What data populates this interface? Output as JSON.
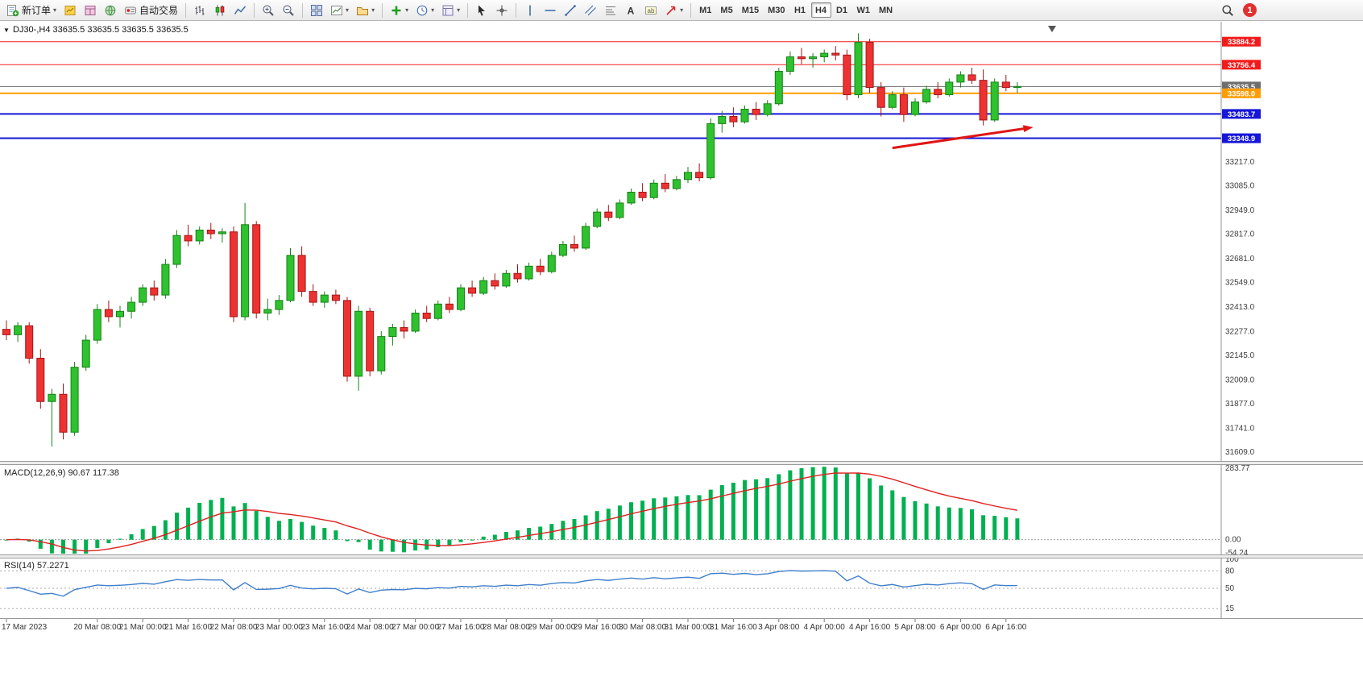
{
  "toolbar": {
    "new_order": "新订单",
    "auto_trading": "自动交易",
    "timeframes": [
      "M1",
      "M5",
      "M15",
      "M30",
      "H1",
      "H4",
      "D1",
      "W1",
      "MN"
    ],
    "active_timeframe": "H4",
    "notification_count": "1"
  },
  "chart_header": {
    "symbol_info": "DJ30-,H4  33635.5 33635.5 33635.5 33635.5"
  },
  "chart_data": {
    "type": "candlestick",
    "symbol": "DJ30-",
    "timeframe": "H4",
    "last_price": 33635.5,
    "colors": {
      "up": "#2ec22e",
      "up_stroke": "#178117",
      "down": "#ee3232",
      "down_stroke": "#a31616",
      "macd_bar": "#00b050",
      "macd_signal": "#e02020",
      "rsi_line": "#3f7fca",
      "axis_text": "#3c3c3c"
    },
    "price_scale": {
      "min": 31565,
      "max": 33990,
      "ticks": [
        "33217.0",
        "33085.0",
        "32949.0",
        "32817.0",
        "32681.0",
        "32549.0",
        "32413.0",
        "32277.0",
        "32145.0",
        "32009.0",
        "31877.0",
        "31741.0",
        "31609.0"
      ]
    },
    "levels": [
      {
        "price": 33884.2,
        "label": "33884.2",
        "color": "#f21b1b",
        "width": 1
      },
      {
        "price": 33756.4,
        "label": "33756.4",
        "color": "#f21b1b",
        "width": 1
      },
      {
        "price": 33635.5,
        "label": "33635.5",
        "color": "#6e6e6e",
        "width": 1,
        "bid": true
      },
      {
        "price": 33598.0,
        "label": "33598.0",
        "color": "#ff9c00",
        "width": 2
      },
      {
        "price": 33483.7,
        "label": "33483.7",
        "color": "#1616d8",
        "width": 2
      },
      {
        "price": 33348.9,
        "label": "33348.9",
        "color": "#1616d8",
        "width": 2
      }
    ],
    "candles": [
      [
        32290,
        32340,
        32230,
        32260
      ],
      [
        32260,
        32330,
        32220,
        32310
      ],
      [
        32310,
        32330,
        32100,
        32130
      ],
      [
        32130,
        32180,
        31850,
        31890
      ],
      [
        31890,
        31960,
        31640,
        31930
      ],
      [
        31930,
        31990,
        31680,
        31720
      ],
      [
        31720,
        32110,
        31700,
        32080
      ],
      [
        32080,
        32260,
        32060,
        32230
      ],
      [
        32230,
        32430,
        32210,
        32400
      ],
      [
        32400,
        32450,
        32330,
        32360
      ],
      [
        32360,
        32420,
        32300,
        32390
      ],
      [
        32390,
        32470,
        32350,
        32440
      ],
      [
        32440,
        32540,
        32420,
        32520
      ],
      [
        32520,
        32560,
        32450,
        32480
      ],
      [
        32480,
        32680,
        32460,
        32650
      ],
      [
        32650,
        32840,
        32630,
        32810
      ],
      [
        32810,
        32870,
        32750,
        32780
      ],
      [
        32780,
        32860,
        32760,
        32840
      ],
      [
        32840,
        32880,
        32790,
        32820
      ],
      [
        32820,
        32850,
        32770,
        32830
      ],
      [
        32830,
        32860,
        32330,
        32360
      ],
      [
        32360,
        32990,
        32340,
        32870
      ],
      [
        32870,
        32890,
        32350,
        32380
      ],
      [
        32380,
        32460,
        32340,
        32400
      ],
      [
        32400,
        32480,
        32370,
        32450
      ],
      [
        32450,
        32740,
        32440,
        32700
      ],
      [
        32700,
        32750,
        32470,
        32500
      ],
      [
        32500,
        32540,
        32420,
        32440
      ],
      [
        32440,
        32500,
        32410,
        32480
      ],
      [
        32480,
        32510,
        32430,
        32450
      ],
      [
        32450,
        32470,
        32000,
        32030
      ],
      [
        32030,
        32420,
        31950,
        32390
      ],
      [
        32390,
        32410,
        32030,
        32060
      ],
      [
        32060,
        32280,
        32040,
        32250
      ],
      [
        32250,
        32320,
        32200,
        32300
      ],
      [
        32300,
        32340,
        32240,
        32280
      ],
      [
        32280,
        32400,
        32270,
        32380
      ],
      [
        32380,
        32420,
        32330,
        32350
      ],
      [
        32350,
        32450,
        32340,
        32430
      ],
      [
        32430,
        32470,
        32380,
        32400
      ],
      [
        32400,
        32540,
        32390,
        32520
      ],
      [
        32520,
        32560,
        32470,
        32490
      ],
      [
        32490,
        32580,
        32480,
        32560
      ],
      [
        32560,
        32600,
        32510,
        32530
      ],
      [
        32530,
        32620,
        32520,
        32600
      ],
      [
        32600,
        32650,
        32550,
        32570
      ],
      [
        32570,
        32660,
        32560,
        32640
      ],
      [
        32640,
        32680,
        32590,
        32610
      ],
      [
        32610,
        32720,
        32600,
        32700
      ],
      [
        32700,
        32780,
        32690,
        32760
      ],
      [
        32760,
        32810,
        32720,
        32740
      ],
      [
        32740,
        32880,
        32730,
        32860
      ],
      [
        32860,
        32960,
        32850,
        32940
      ],
      [
        32940,
        32980,
        32890,
        32910
      ],
      [
        32910,
        33010,
        32900,
        32990
      ],
      [
        32990,
        33070,
        32980,
        33050
      ],
      [
        33050,
        33100,
        33000,
        33020
      ],
      [
        33020,
        33120,
        33010,
        33100
      ],
      [
        33100,
        33150,
        33050,
        33070
      ],
      [
        33070,
        33140,
        33060,
        33120
      ],
      [
        33120,
        33190,
        33100,
        33160
      ],
      [
        33160,
        33210,
        33110,
        33130
      ],
      [
        33130,
        33460,
        33120,
        33430
      ],
      [
        33430,
        33500,
        33380,
        33470
      ],
      [
        33470,
        33520,
        33410,
        33440
      ],
      [
        33440,
        33530,
        33430,
        33510
      ],
      [
        33510,
        33550,
        33450,
        33480
      ],
      [
        33480,
        33560,
        33470,
        33540
      ],
      [
        33540,
        33740,
        33530,
        33720
      ],
      [
        33720,
        33830,
        33700,
        33800
      ],
      [
        33800,
        33850,
        33760,
        33790
      ],
      [
        33790,
        33820,
        33740,
        33800
      ],
      [
        33800,
        33840,
        33770,
        33820
      ],
      [
        33820,
        33860,
        33780,
        33810
      ],
      [
        33810,
        33840,
        33560,
        33590
      ],
      [
        33590,
        33930,
        33570,
        33880
      ],
      [
        33880,
        33900,
        33600,
        33630
      ],
      [
        33630,
        33660,
        33470,
        33520
      ],
      [
        33520,
        33610,
        33510,
        33590
      ],
      [
        33590,
        33630,
        33440,
        33480
      ],
      [
        33480,
        33570,
        33470,
        33550
      ],
      [
        33550,
        33640,
        33540,
        33620
      ],
      [
        33620,
        33660,
        33570,
        33590
      ],
      [
        33590,
        33680,
        33580,
        33660
      ],
      [
        33660,
        33720,
        33630,
        33700
      ],
      [
        33700,
        33740,
        33650,
        33670
      ],
      [
        33670,
        33730,
        33420,
        33450
      ],
      [
        33450,
        33680,
        33440,
        33660
      ],
      [
        33660,
        33700,
        33610,
        33630
      ],
      [
        33630,
        33660,
        33600,
        33635.5
      ]
    ],
    "time_labels": [
      [
        0,
        "17 Mar 2023"
      ],
      [
        8,
        "20 Mar 08:00"
      ],
      [
        12,
        "21 Mar 00:00"
      ],
      [
        16,
        "21 Mar 16:00"
      ],
      [
        20,
        "22 Mar 08:00"
      ],
      [
        24,
        "23 Mar 00:00"
      ],
      [
        28,
        "23 Mar 16:00"
      ],
      [
        32,
        "24 Mar 08:00"
      ],
      [
        36,
        "27 Mar 00:00"
      ],
      [
        40,
        "27 Mar 16:00"
      ],
      [
        44,
        "28 Mar 08:00"
      ],
      [
        48,
        "29 Mar 00:00"
      ],
      [
        52,
        "29 Mar 16:00"
      ],
      [
        56,
        "30 Mar 08:00"
      ],
      [
        60,
        "31 Mar 00:00"
      ],
      [
        64,
        "31 Mar 16:00"
      ],
      [
        68,
        "3 Apr 08:00"
      ],
      [
        72,
        "4 Apr 00:00"
      ],
      [
        76,
        "4 Apr 16:00"
      ],
      [
        80,
        "5 Apr 08:00"
      ],
      [
        84,
        "6 Apr 00:00"
      ],
      [
        88,
        "6 Apr 16:00"
      ]
    ],
    "macd": {
      "label": "MACD(12,26,9) 90.67 117.38",
      "fast": 12,
      "slow": 26,
      "signal": 9,
      "main_value": 90.67,
      "signal_value": 117.38,
      "range": [
        -54.24,
        283.77
      ],
      "axis": [
        "283.77",
        "0.00",
        "-54.24"
      ]
    },
    "rsi": {
      "label": "RSI(14) 57.2271",
      "period": 14,
      "value": 57.2271,
      "levels": [
        80,
        50,
        15
      ],
      "axis": [
        "100",
        "80",
        "50",
        "15"
      ]
    },
    "arrow": {
      "from_bar": 78,
      "from_price": 33295,
      "to_bar": 90.4,
      "to_price": 33410,
      "color": "#e01515"
    }
  }
}
